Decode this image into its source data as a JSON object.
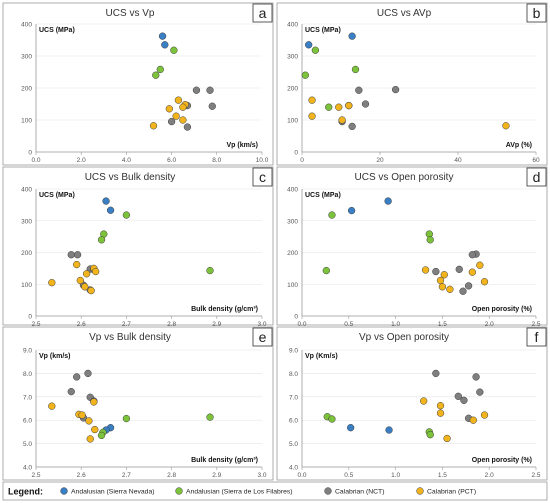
{
  "series_styles": [
    {
      "name": "Andalusian (Sierra Nevada)",
      "color": "#3a7fc4"
    },
    {
      "name": "Andalusian (Sierra de Los Filabres)",
      "color": "#7cc23a"
    },
    {
      "name": "Calabrian (NCT)",
      "color": "#7f7f7f"
    },
    {
      "name": "Calabrian (PCT)",
      "color": "#f2b41c"
    }
  ],
  "legend": {
    "title": "Legend:"
  },
  "chart_data": [
    {
      "type": "scatter",
      "panel": "a",
      "title": "UCS vs Vp",
      "ylabel": "UCS (MPa)",
      "xlabel": "Vp (km/s)",
      "xlim": [
        0,
        10
      ],
      "ylim": [
        0,
        400
      ],
      "xticks": [
        "0.0",
        "2.0",
        "4.0",
        "6.0",
        "8.0",
        "10.0"
      ],
      "yticks": [
        "0",
        "100",
        "200",
        "300",
        "400"
      ],
      "series": [
        {
          "name": "Andalusian (Sierra Nevada)",
          "points": [
            [
              5.6,
              362
            ],
            [
              5.7,
              335
            ]
          ]
        },
        {
          "name": "Andalusian (Sierra de Los Filabres)",
          "points": [
            [
              6.1,
              318
            ],
            [
              5.5,
              258
            ],
            [
              5.3,
              240
            ]
          ]
        },
        {
          "name": "Calabrian (NCT)",
          "points": [
            [
              7.1,
              193
            ],
            [
              7.7,
              193
            ],
            [
              7.8,
              143
            ],
            [
              6.7,
              145
            ],
            [
              6.7,
              78
            ],
            [
              6.0,
              95
            ]
          ]
        },
        {
          "name": "Calabrian (PCT)",
          "points": [
            [
              6.3,
              162
            ],
            [
              6.6,
              148
            ],
            [
              6.5,
              140
            ],
            [
              5.9,
              135
            ],
            [
              6.2,
              112
            ],
            [
              6.5,
              100
            ],
            [
              5.2,
              82
            ]
          ]
        }
      ]
    },
    {
      "type": "scatter",
      "panel": "b",
      "title": "UCS vs AVp",
      "ylabel": "UCS (MPa)",
      "xlabel": "AVp (%)",
      "xlim": [
        0,
        70
      ],
      "ylim": [
        0,
        400
      ],
      "xticks": [
        "0",
        "20",
        "40",
        "60"
      ],
      "yticks": [
        "0",
        "100",
        "200",
        "300",
        "400"
      ],
      "series": [
        {
          "name": "Andalusian (Sierra Nevada)",
          "points": [
            [
              2,
              335
            ],
            [
              15,
              362
            ]
          ]
        },
        {
          "name": "Andalusian (Sierra de Los Filabres)",
          "points": [
            [
              4,
              318
            ],
            [
              16,
              258
            ],
            [
              1,
              240
            ],
            [
              8,
              140
            ]
          ]
        },
        {
          "name": "Calabrian (NCT)",
          "points": [
            [
              28,
              195
            ],
            [
              17,
              193
            ],
            [
              19,
              150
            ],
            [
              14,
              145
            ],
            [
              12,
              95
            ],
            [
              15,
              80
            ]
          ]
        },
        {
          "name": "Calabrian (PCT)",
          "points": [
            [
              3,
              162
            ],
            [
              11,
              140
            ],
            [
              14,
              145
            ],
            [
              3,
              112
            ],
            [
              12,
              100
            ],
            [
              61,
              82
            ]
          ]
        }
      ]
    },
    {
      "type": "scatter",
      "panel": "c",
      "title": "UCS vs Bulk density",
      "ylabel": "UCS (MPa)",
      "xlabel": "Bulk density (g/cm³)",
      "xlim": [
        2.5,
        3.0
      ],
      "ylim": [
        0,
        400
      ],
      "xticks": [
        "2.5",
        "2.6",
        "2.7",
        "2.8",
        "2.9",
        "3.0"
      ],
      "yticks": [
        "0",
        "100",
        "200",
        "300",
        "400"
      ],
      "series": [
        {
          "name": "Andalusian (Sierra Nevada)",
          "points": [
            [
              2.655,
              362
            ],
            [
              2.665,
              333
            ]
          ]
        },
        {
          "name": "Andalusian (Sierra de Los Filabres)",
          "points": [
            [
              2.7,
              318
            ],
            [
              2.65,
              258
            ],
            [
              2.645,
              240
            ],
            [
              2.885,
              143
            ]
          ]
        },
        {
          "name": "Calabrian (NCT)",
          "points": [
            [
              2.578,
              193
            ],
            [
              2.592,
              193
            ],
            [
              2.62,
              148
            ],
            [
              2.628,
              146
            ],
            [
              2.605,
              97
            ],
            [
              2.62,
              82
            ]
          ]
        },
        {
          "name": "Calabrian (PCT)",
          "points": [
            [
              2.59,
              162
            ],
            [
              2.628,
              150
            ],
            [
              2.632,
              140
            ],
            [
              2.612,
              133
            ],
            [
              2.598,
              112
            ],
            [
              2.535,
              105
            ],
            [
              2.608,
              92
            ],
            [
              2.622,
              80
            ]
          ]
        }
      ]
    },
    {
      "type": "scatter",
      "panel": "d",
      "title": "UCS vs Open porosity",
      "ylabel": "UCS (MPa)",
      "xlabel": "Open porosity (%)",
      "xlim": [
        0,
        2.5
      ],
      "ylim": [
        0,
        400
      ],
      "xticks": [
        "0.0",
        "0.5",
        "1.0",
        "1.5",
        "2.0",
        "2.5"
      ],
      "yticks": [
        "0",
        "100",
        "200",
        "300",
        "400"
      ],
      "series": [
        {
          "name": "Andalusian (Sierra Nevada)",
          "points": [
            [
              0.92,
              362
            ],
            [
              0.53,
              332
            ]
          ]
        },
        {
          "name": "Andalusian (Sierra de Los Filabres)",
          "points": [
            [
              0.32,
              318
            ],
            [
              1.36,
              258
            ],
            [
              1.37,
              240
            ],
            [
              0.26,
              143
            ]
          ]
        },
        {
          "name": "Calabrian (NCT)",
          "points": [
            [
              1.86,
              195
            ],
            [
              1.82,
              193
            ],
            [
              1.68,
              147
            ],
            [
              1.43,
              140
            ],
            [
              1.78,
              95
            ],
            [
              1.72,
              78
            ]
          ]
        },
        {
          "name": "Calabrian (PCT)",
          "points": [
            [
              1.9,
              160
            ],
            [
              1.32,
              145
            ],
            [
              1.82,
              138
            ],
            [
              1.52,
              130
            ],
            [
              1.48,
              112
            ],
            [
              1.95,
              108
            ],
            [
              1.5,
              92
            ],
            [
              1.58,
              84
            ]
          ]
        }
      ]
    },
    {
      "type": "scatter",
      "panel": "e",
      "title": "Vp vs Bulk density",
      "ylabel": "Vp (km/s)",
      "xlabel": "Bulk density (g/cm³)",
      "xlim": [
        2.5,
        3.0
      ],
      "ylim": [
        4.0,
        9.0
      ],
      "xticks": [
        "2.5",
        "2.6",
        "2.7",
        "2.8",
        "2.9",
        "3.0"
      ],
      "yticks": [
        "4.0",
        "5.0",
        "6.0",
        "7.0",
        "8.0",
        "9.0"
      ],
      "series": [
        {
          "name": "Andalusian (Sierra Nevada)",
          "points": [
            [
              2.665,
              5.68
            ],
            [
              2.655,
              5.58
            ]
          ]
        },
        {
          "name": "Andalusian (Sierra de Los Filabres)",
          "points": [
            [
              2.7,
              6.07
            ],
            [
              2.885,
              6.13
            ],
            [
              2.648,
              5.48
            ],
            [
              2.645,
              5.35
            ]
          ]
        },
        {
          "name": "Calabrian (NCT)",
          "points": [
            [
              2.615,
              8.0
            ],
            [
              2.59,
              7.85
            ],
            [
              2.578,
              7.22
            ],
            [
              2.62,
              6.98
            ],
            [
              2.628,
              6.82
            ],
            [
              2.605,
              6.1
            ]
          ]
        },
        {
          "name": "Calabrian (PCT)",
          "points": [
            [
              2.535,
              6.6
            ],
            [
              2.595,
              6.25
            ],
            [
              2.602,
              6.22
            ],
            [
              2.628,
              6.78
            ],
            [
              2.617,
              5.97
            ],
            [
              2.63,
              5.6
            ],
            [
              2.62,
              5.2
            ]
          ]
        }
      ]
    },
    {
      "type": "scatter",
      "panel": "f",
      "title": "Vp vs Open porosity",
      "ylabel": "Vp (Km/s)",
      "xlabel": "Open porosity (%)",
      "xlim": [
        0,
        2.5
      ],
      "ylim": [
        4.0,
        9.0
      ],
      "xticks": [
        "0.0",
        "0.5",
        "1.0",
        "1.5",
        "2.0",
        "2.5"
      ],
      "yticks": [
        "4.0",
        "5.0",
        "6.0",
        "7.0",
        "8.0",
        "9.0"
      ],
      "series": [
        {
          "name": "Andalusian (Sierra Nevada)",
          "points": [
            [
              0.52,
              5.68
            ],
            [
              0.93,
              5.58
            ]
          ]
        },
        {
          "name": "Andalusian (Sierra de Los Filabres)",
          "points": [
            [
              0.27,
              6.15
            ],
            [
              0.32,
              6.05
            ],
            [
              1.36,
              5.5
            ],
            [
              1.37,
              5.38
            ]
          ]
        },
        {
          "name": "Calabrian (NCT)",
          "points": [
            [
              1.43,
              8.0
            ],
            [
              1.86,
              7.85
            ],
            [
              1.9,
              7.2
            ],
            [
              1.67,
              7.02
            ],
            [
              1.73,
              6.85
            ],
            [
              1.78,
              6.08
            ]
          ]
        },
        {
          "name": "Calabrian (PCT)",
          "points": [
            [
              1.3,
              6.82
            ],
            [
              1.48,
              6.62
            ],
            [
              1.48,
              6.3
            ],
            [
              1.95,
              6.22
            ],
            [
              1.83,
              6.0
            ],
            [
              1.55,
              5.22
            ]
          ]
        }
      ]
    }
  ]
}
